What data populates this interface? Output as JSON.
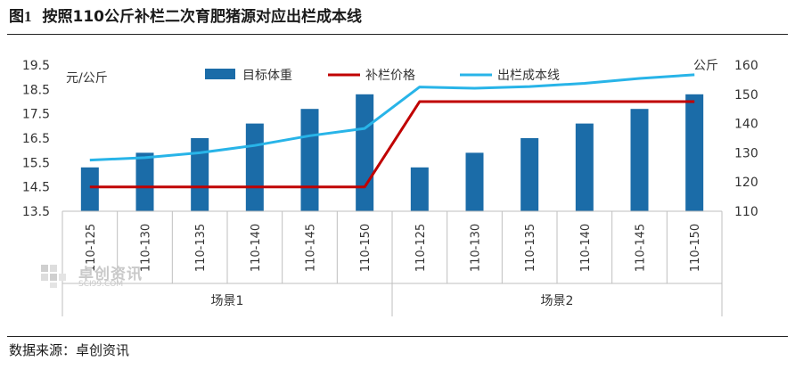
{
  "figure": {
    "number": "图1",
    "title": "按照110公斤补栏二次育肥猪源对应出栏成本线"
  },
  "source": "数据来源：卓创资讯",
  "watermark": {
    "cn": "卓创资讯",
    "en": "SCI99.COM"
  },
  "chart_data": {
    "type": "bar+line",
    "categories": [
      "110-125",
      "110-130",
      "110-135",
      "110-140",
      "110-145",
      "110-150",
      "110-125",
      "110-130",
      "110-135",
      "110-140",
      "110-145",
      "110-150"
    ],
    "groups": [
      {
        "label": "场景1",
        "count": 6
      },
      {
        "label": "场景2",
        "count": 6
      }
    ],
    "y_left": {
      "unit": "元/公斤",
      "min": 13.5,
      "max": 19.5,
      "ticks": [
        "13.5",
        "14.5",
        "15.5",
        "16.5",
        "17.5",
        "18.5",
        "19.5"
      ]
    },
    "y_right": {
      "unit": "公斤",
      "min": 110,
      "max": 160,
      "ticks": [
        "110",
        "120",
        "130",
        "140",
        "150",
        "160"
      ]
    },
    "legend": {
      "position": "top",
      "items": [
        {
          "name": "目标体重",
          "kind": "bar",
          "color": "#1b6ca8"
        },
        {
          "name": "补栏价格",
          "kind": "line",
          "color": "#c00000"
        },
        {
          "name": "出栏成本线",
          "kind": "line",
          "color": "#28b4e8"
        }
      ]
    },
    "series": [
      {
        "name": "目标体重",
        "axis": "right",
        "type": "bar",
        "color": "#1b6ca8",
        "values": [
          125,
          130,
          135,
          140,
          145,
          150,
          125,
          130,
          135,
          140,
          145,
          150
        ]
      },
      {
        "name": "补栏价格",
        "axis": "left",
        "type": "line",
        "color": "#c00000",
        "values": [
          14.5,
          14.5,
          14.5,
          14.5,
          14.5,
          14.5,
          18.0,
          18.0,
          18.0,
          18.0,
          18.0,
          18.0
        ]
      },
      {
        "name": "出栏成本线",
        "axis": "left",
        "type": "line",
        "color": "#28b4e8",
        "values": [
          15.6,
          15.7,
          15.9,
          16.2,
          16.6,
          16.9,
          18.6,
          18.55,
          18.62,
          18.75,
          18.95,
          19.1
        ]
      }
    ]
  }
}
